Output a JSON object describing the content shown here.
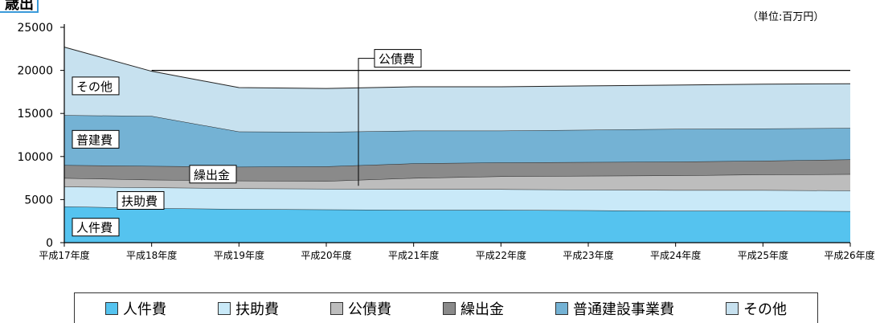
{
  "header": {
    "title_tab": "歳出",
    "unit": "（単位:百万円）"
  },
  "chart_data": {
    "type": "area",
    "stacked": true,
    "categories": [
      "平成17年度",
      "平成18年度",
      "平成19年度",
      "平成20年度",
      "平成21年度",
      "平成22年度",
      "平成23年度",
      "平成24年度",
      "平成25年度",
      "平成26年度"
    ],
    "ylim": [
      0,
      25000
    ],
    "yticks": [
      0,
      5000,
      10000,
      15000,
      20000,
      25000
    ],
    "series": [
      {
        "name": "人件費",
        "color": "#55c3ef",
        "values": [
          4200,
          4000,
          3900,
          3850,
          3800,
          3800,
          3750,
          3700,
          3700,
          3650
        ]
      },
      {
        "name": "扶助費",
        "color": "#c9e9f8",
        "values": [
          2300,
          2400,
          2400,
          2400,
          2400,
          2400,
          2400,
          2400,
          2400,
          2400
        ]
      },
      {
        "name": "公債費",
        "color": "#bdbdbd",
        "values": [
          1000,
          900,
          900,
          900,
          1300,
          1500,
          1600,
          1700,
          1800,
          1900
        ]
      },
      {
        "name": "繰出金",
        "color": "#8a8a8a",
        "values": [
          1500,
          1600,
          1600,
          1700,
          1700,
          1600,
          1600,
          1600,
          1600,
          1700
        ]
      },
      {
        "name": "普通建設事業費",
        "color": "#74b2d4",
        "values": [
          5800,
          5800,
          4100,
          4000,
          3800,
          3700,
          3750,
          3800,
          3750,
          3650
        ]
      },
      {
        "name": "その他",
        "color": "#c7e1ef",
        "values": [
          7900,
          5200,
          5100,
          5050,
          5100,
          5100,
          5100,
          5100,
          5150,
          5150
        ]
      }
    ],
    "reference_line": 20000,
    "area_labels": [
      "人件費",
      "扶助費",
      "繰出金",
      "普建費",
      "その他"
    ],
    "callout_label": "公債費",
    "legend": [
      "人件費",
      "扶助費",
      "公債費",
      "繰出金",
      "普通建設事業費",
      "その他"
    ],
    "grid": false,
    "legend_position": "bottom"
  }
}
